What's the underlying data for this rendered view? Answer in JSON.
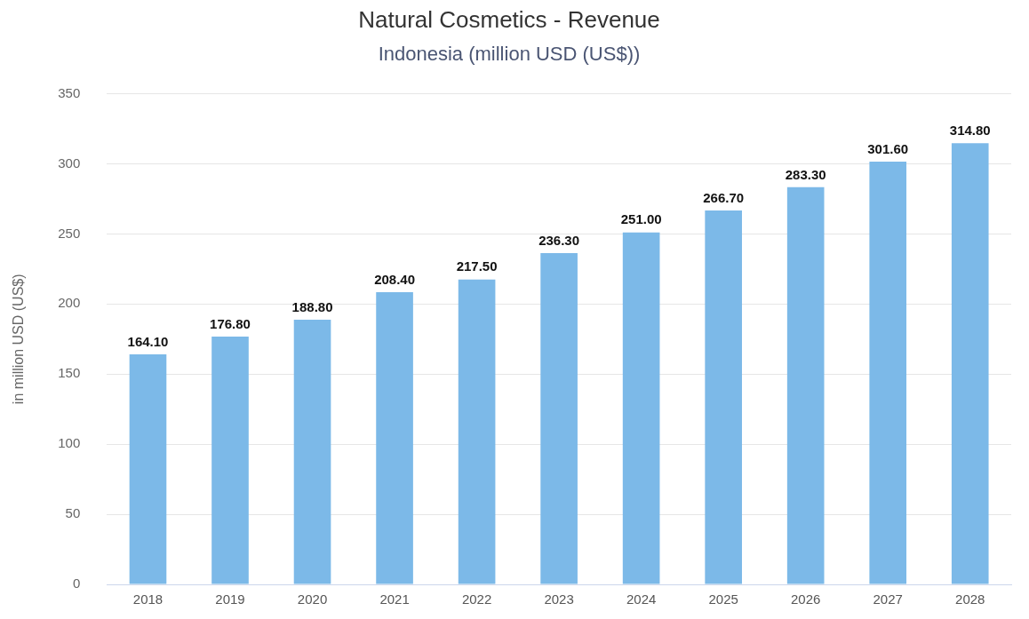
{
  "chart_data": {
    "type": "bar",
    "title": "Natural Cosmetics - Revenue",
    "subtitle": "Indonesia (million USD (US$))",
    "ylabel": "in million USD (US$)",
    "categories": [
      "2018",
      "2019",
      "2020",
      "2021",
      "2022",
      "2023",
      "2024",
      "2025",
      "2026",
      "2027",
      "2028"
    ],
    "values": [
      164.1,
      176.8,
      188.8,
      208.4,
      217.5,
      236.3,
      251.0,
      266.7,
      283.3,
      301.6,
      314.8
    ],
    "value_labels": [
      "164.10",
      "176.80",
      "188.80",
      "208.40",
      "217.50",
      "236.30",
      "251.00",
      "266.70",
      "283.30",
      "301.60",
      "314.80"
    ],
    "color": "#7cb9e8",
    "ylim": [
      0,
      350
    ],
    "yticks": [
      0,
      50,
      100,
      150,
      200,
      250,
      300,
      350
    ],
    "grid": "y",
    "legend": false
  }
}
